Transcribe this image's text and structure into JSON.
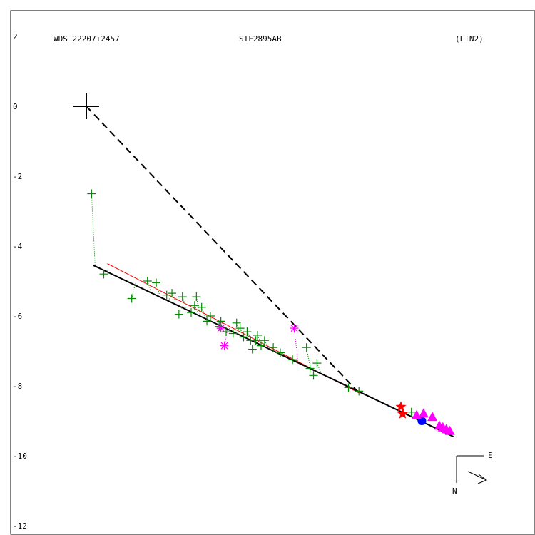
{
  "header": {
    "wds": "WDS 22207+2457",
    "disc": "STF2895AB",
    "fit": "(LIN2)"
  },
  "compass": {
    "east": "E",
    "north": "N"
  },
  "chart_data": {
    "type": "scatter",
    "ylim": [
      -12,
      2.2
    ],
    "xlim": [
      -1.7,
      12.7
    ],
    "yticks": [
      "2",
      "0",
      "-2",
      "-4",
      "-6",
      "-8",
      "-10",
      "-12"
    ],
    "ytick_values": [
      2,
      0,
      -2,
      -4,
      -6,
      -8,
      -10,
      -12
    ],
    "primary": [
      0,
      0
    ],
    "colors": {
      "green": "#008800",
      "magenta": "#ff00ff",
      "red": "#ff0000",
      "blue": "#0000ff",
      "black": "#000000"
    },
    "dashed_line": [
      [
        0,
        0
      ],
      [
        7.8,
        -8.2
      ]
    ],
    "fit_line_black": [
      [
        0.2,
        -4.55
      ],
      [
        10.5,
        -9.45
      ]
    ],
    "fit_line_red": [
      [
        0.6,
        -4.5
      ],
      [
        7.8,
        -8.2
      ]
    ],
    "series": [
      {
        "marker": "plus",
        "color": "green",
        "points": [
          [
            0.15,
            -2.5
          ],
          [
            0.5,
            -4.8
          ],
          [
            1.3,
            -5.5
          ],
          [
            1.75,
            -5.0
          ],
          [
            2.0,
            -5.05
          ],
          [
            2.3,
            -5.4
          ],
          [
            2.45,
            -5.35
          ],
          [
            2.65,
            -5.95
          ],
          [
            2.75,
            -5.45
          ],
          [
            3.0,
            -5.9
          ],
          [
            3.1,
            -5.7
          ],
          [
            3.15,
            -5.45
          ],
          [
            3.3,
            -5.75
          ],
          [
            3.45,
            -6.15
          ],
          [
            3.55,
            -6.0
          ],
          [
            3.8,
            -6.3
          ],
          [
            3.85,
            -6.15
          ],
          [
            4.0,
            -6.45
          ],
          [
            4.2,
            -6.5
          ],
          [
            4.3,
            -6.2
          ],
          [
            4.4,
            -6.35
          ],
          [
            4.5,
            -6.6
          ],
          [
            4.6,
            -6.45
          ],
          [
            4.7,
            -6.7
          ],
          [
            4.75,
            -6.95
          ],
          [
            4.85,
            -6.7
          ],
          [
            4.9,
            -6.55
          ],
          [
            5.0,
            -6.85
          ],
          [
            5.1,
            -6.7
          ],
          [
            5.35,
            -6.9
          ],
          [
            5.55,
            -7.05
          ],
          [
            5.9,
            -7.25
          ],
          [
            6.3,
            -6.9
          ],
          [
            6.4,
            -7.5
          ],
          [
            6.5,
            -7.7
          ],
          [
            6.6,
            -7.35
          ],
          [
            7.5,
            -8.05
          ],
          [
            7.8,
            -8.15
          ],
          [
            9.3,
            -8.75
          ]
        ]
      },
      {
        "marker": "asterisk",
        "color": "magenta",
        "points": [
          [
            3.85,
            -6.35
          ],
          [
            3.95,
            -6.85
          ],
          [
            5.95,
            -6.35
          ]
        ]
      },
      {
        "marker": "star",
        "color": "red",
        "points": [
          [
            9.0,
            -8.6
          ],
          [
            9.05,
            -8.8
          ]
        ]
      },
      {
        "marker": "circle",
        "color": "blue",
        "points": [
          [
            9.6,
            -9.0
          ]
        ]
      },
      {
        "marker": "triangle",
        "color": "magenta",
        "points": [
          [
            9.45,
            -8.85
          ],
          [
            9.65,
            -8.8
          ],
          [
            9.9,
            -8.9
          ],
          [
            10.1,
            -9.15
          ],
          [
            10.2,
            -9.2
          ],
          [
            10.3,
            -9.25
          ],
          [
            10.4,
            -9.3
          ]
        ]
      }
    ]
  }
}
